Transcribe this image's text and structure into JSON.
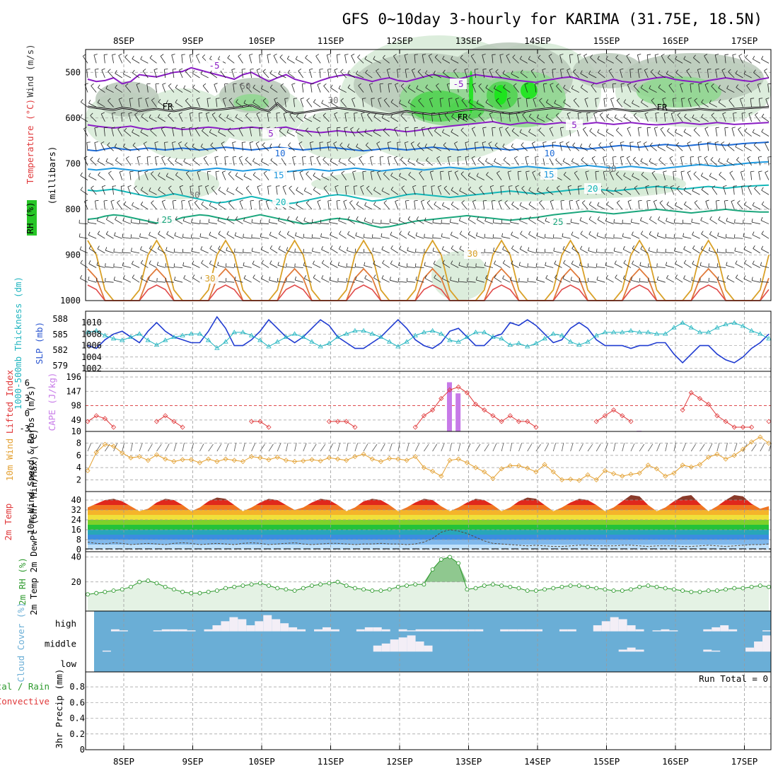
{
  "title": "GFS 0~10day 3-hourly for KARIMA (31.75E, 18.5N)",
  "run_total": "Run Total = 0",
  "colors": {
    "frame": "#000000",
    "grid": "#9a9a9a",
    "cloud": "#6aaed6",
    "cloudClear": "#f3eef6",
    "rh": "#2e9a2e",
    "slp": "#1f3bd1",
    "thick": "#21b5c0",
    "li": "#e0383a",
    "cape": "#c77ae8",
    "wind10": "#e3a030",
    "temp5": "#8a1cc4",
    "temp10": "#1d6bd6",
    "temp15": "#1f9ae0",
    "temp20": "#13b7b8",
    "temp25": "#1aa67c",
    "temp30": "#d9a128"
  },
  "chart_data": [
    {
      "panel": "upper-air",
      "type": "line",
      "x_dates": [
        "8SEP",
        "9SEP",
        "10SEP",
        "11SEP",
        "12SEP",
        "13SEP",
        "14SEP",
        "15SEP",
        "16SEP",
        "17SEP"
      ],
      "ylabel_parts": [
        "Wind (m/s)",
        "Temperature (°C)",
        "RH (%)"
      ],
      "ylabel": "(millibars)",
      "y_ticks": [
        500,
        600,
        700,
        800,
        900,
        1000
      ],
      "ylim": [
        1000,
        450
      ],
      "isotherm_labels": [
        {
          "text": "-5",
          "series": "-5 upper"
        },
        {
          "text": "-5",
          "series": "-5 upper"
        },
        {
          "text": "FR",
          "series": "0"
        },
        {
          "text": "FR",
          "series": "0"
        },
        {
          "text": "FR",
          "series": "0"
        },
        {
          "text": "5",
          "series": "5"
        },
        {
          "text": "5",
          "series": "5"
        },
        {
          "text": "10",
          "series": "10"
        },
        {
          "text": "10",
          "series": "10"
        },
        {
          "text": "15",
          "series": "15"
        },
        {
          "text": "15",
          "series": "15"
        },
        {
          "text": "20",
          "series": "20"
        },
        {
          "text": "20",
          "series": "20"
        },
        {
          "text": "25",
          "series": "25"
        },
        {
          "text": "25",
          "series": "25"
        },
        {
          "text": "30",
          "series": "30"
        },
        {
          "text": "30",
          "series": "30"
        }
      ],
      "rh_labels": [
        "50",
        "30",
        "30",
        "30"
      ],
      "isotherms": [
        {
          "label": "-5",
          "color": "#8a1cc4",
          "values": [
            515,
            520,
            518,
            512,
            525,
            520,
            505,
            508,
            510,
            505,
            500,
            498,
            490,
            495,
            500,
            505,
            510,
            515,
            505,
            500,
            510,
            520,
            512,
            505,
            515,
            520,
            525,
            518,
            512,
            508,
            505,
            510,
            515,
            520,
            515,
            512,
            518,
            520,
            515,
            510,
            505,
            508,
            512,
            515,
            510,
            505,
            508,
            510,
            512,
            515,
            518,
            520,
            522,
            518,
            515,
            512,
            510,
            515,
            520,
            525,
            520,
            515,
            520,
            522,
            518,
            515,
            512,
            510,
            515,
            518,
            520,
            522,
            518,
            515,
            512,
            515,
            518,
            520,
            515,
            512
          ]
        },
        {
          "label": "0",
          "color": "#000000",
          "values": [
            575,
            578,
            580,
            582,
            578,
            580,
            585,
            582,
            580,
            583,
            585,
            582,
            578,
            580,
            583,
            582,
            580,
            578,
            575,
            572,
            580,
            585,
            568,
            585,
            590,
            588,
            585,
            582,
            580,
            578,
            580,
            582,
            585,
            588,
            590,
            592,
            588,
            585,
            588,
            590,
            592,
            590,
            588,
            585,
            582,
            580,
            582,
            585,
            588,
            590,
            588,
            585,
            582,
            580,
            578,
            580,
            582,
            585,
            585,
            585,
            583,
            580,
            582,
            584,
            585,
            583,
            580,
            582,
            584,
            583,
            582,
            580,
            582,
            583,
            582,
            580,
            579,
            578,
            577,
            576
          ]
        },
        {
          "label": "5",
          "color": "#8a1cc4",
          "values": [
            615,
            618,
            620,
            622,
            620,
            618,
            622,
            625,
            622,
            620,
            622,
            625,
            624,
            622,
            620,
            622,
            625,
            624,
            622,
            620,
            622,
            625,
            622,
            620,
            625,
            628,
            630,
            632,
            630,
            628,
            630,
            632,
            630,
            628,
            626,
            625,
            628,
            630,
            628,
            625,
            622,
            620,
            618,
            616,
            614,
            612,
            610,
            608,
            612,
            615,
            612,
            610,
            612,
            614,
            612,
            610,
            612,
            614,
            612,
            610,
            612,
            614,
            612,
            610,
            612,
            614,
            615,
            614,
            612,
            610,
            612,
            614,
            612,
            610,
            612,
            614,
            613,
            612,
            611,
            610
          ]
        },
        {
          "label": "10",
          "color": "#1d6bd6",
          "values": [
            670,
            672,
            668,
            665,
            668,
            670,
            668,
            666,
            668,
            670,
            668,
            666,
            668,
            670,
            668,
            666,
            664,
            666,
            668,
            670,
            668,
            666,
            664,
            666,
            668,
            670,
            668,
            666,
            664,
            666,
            668,
            670,
            672,
            670,
            668,
            666,
            668,
            670,
            668,
            666,
            664,
            666,
            668,
            670,
            668,
            666,
            664,
            666,
            668,
            670,
            668,
            666,
            664,
            662,
            660,
            662,
            664,
            666,
            668,
            666,
            664,
            662,
            660,
            662,
            664,
            662,
            660,
            658,
            660,
            662,
            660,
            658,
            656,
            658,
            660,
            658,
            656,
            655,
            654,
            653
          ]
        },
        {
          "label": "15",
          "color": "#1f9ae0",
          "values": [
            712,
            714,
            712,
            710,
            712,
            714,
            716,
            714,
            712,
            710,
            712,
            714,
            716,
            714,
            712,
            710,
            712,
            714,
            716,
            714,
            712,
            714,
            716,
            718,
            716,
            714,
            712,
            714,
            716,
            714,
            712,
            710,
            712,
            714,
            716,
            714,
            712,
            710,
            712,
            714,
            712,
            710,
            708,
            710,
            712,
            710,
            708,
            706,
            708,
            710,
            708,
            706,
            708,
            710,
            712,
            710,
            708,
            706,
            704,
            706,
            708,
            710,
            708,
            706,
            708,
            710,
            712,
            710,
            708,
            706,
            704,
            702,
            704,
            706,
            704,
            702,
            700,
            698,
            697,
            696
          ]
        },
        {
          "label": "20",
          "color": "#13b7b8",
          "values": [
            758,
            760,
            758,
            756,
            760,
            764,
            768,
            772,
            774,
            770,
            766,
            770,
            774,
            778,
            782,
            786,
            784,
            780,
            776,
            772,
            776,
            780,
            784,
            788,
            786,
            782,
            778,
            774,
            770,
            768,
            770,
            774,
            778,
            782,
            780,
            776,
            772,
            768,
            766,
            768,
            770,
            772,
            774,
            772,
            770,
            768,
            766,
            764,
            762,
            760,
            762,
            764,
            766,
            764,
            762,
            760,
            758,
            756,
            754,
            756,
            758,
            760,
            758,
            756,
            754,
            752,
            750,
            752,
            754,
            756,
            754,
            752,
            750,
            752,
            754,
            752,
            750,
            749,
            748,
            747
          ]
        },
        {
          "label": "25",
          "color": "#1aa67c",
          "values": [
            822,
            820,
            815,
            812,
            814,
            818,
            822,
            826,
            830,
            828,
            824,
            818,
            815,
            812,
            814,
            818,
            822,
            824,
            820,
            816,
            812,
            816,
            820,
            824,
            828,
            832,
            830,
            826,
            822,
            820,
            822,
            826,
            830,
            836,
            840,
            838,
            834,
            830,
            826,
            824,
            822,
            820,
            818,
            816,
            814,
            816,
            818,
            820,
            822,
            824,
            822,
            820,
            818,
            815,
            812,
            810,
            808,
            806,
            804,
            806,
            808,
            810,
            808,
            806,
            804,
            802,
            800,
            802,
            804,
            806,
            808,
            806,
            804,
            802,
            800,
            802,
            804,
            805,
            806,
            806
          ]
        }
      ]
    },
    {
      "panel": "slp-thickness",
      "type": "line",
      "ylabel_left": "1000-500mb Thickness (dm)",
      "ylabel_right": "SLP (mb)",
      "left_ticks": [
        579,
        582,
        585,
        588
      ],
      "right_ticks": [
        1002,
        1004,
        1006,
        1008,
        1010
      ],
      "slp": [
        1006,
        1005.5,
        1007,
        1008,
        1008.5,
        1007.5,
        1006.5,
        1008.5,
        1010,
        1008.5,
        1007.5,
        1007,
        1006.5,
        1006.5,
        1008.5,
        1011,
        1009,
        1006,
        1006,
        1007,
        1008.5,
        1010.5,
        1009,
        1007.5,
        1006.5,
        1007.5,
        1009,
        1010.5,
        1009.5,
        1007.5,
        1006.5,
        1005.5,
        1005.5,
        1006.5,
        1007.5,
        1009,
        1010.5,
        1009,
        1007,
        1006,
        1005.5,
        1006.5,
        1008.5,
        1009,
        1007.5,
        1006,
        1006,
        1007.5,
        1008,
        1010,
        1009.5,
        1010.5,
        1009.5,
        1008,
        1006.5,
        1007,
        1009,
        1010,
        1009,
        1007,
        1006,
        1006,
        1006,
        1005.5,
        1006,
        1006,
        1006.5,
        1006.5,
        1004.5,
        1003,
        1004.5,
        1006,
        1006,
        1004.5,
        1003.5,
        1003,
        1004,
        1005.5,
        1006.5,
        1008
      ]
    },
    {
      "panel": "lifted-cape",
      "type": "bar",
      "ylabel_left": "Lifted Index",
      "ylabel_right": "CAPE (J/kg)",
      "left_ticks": [
        -3,
        0,
        3,
        6
      ],
      "right_ticks": [
        10,
        49,
        98,
        147,
        196
      ],
      "cape_bars": [
        {
          "time_index": 42,
          "value": 178
        },
        {
          "time_index": 43,
          "value": 140
        },
        {
          "time_index": 64,
          "value": 12
        },
        {
          "time_index": 71,
          "value": 10
        },
        {
          "time_index": 72,
          "value": 10
        }
      ]
    },
    {
      "panel": "wind10m",
      "type": "line",
      "ylabel": "10m Wind Speed & Barbs (m/s)",
      "y_ticks": [
        2,
        4,
        6,
        8
      ],
      "values": [
        3.5,
        6.5,
        7.8,
        7.5,
        6.4,
        5.6,
        5.8,
        5.2,
        6.1,
        5.4,
        5.0,
        5.3,
        5.3,
        4.8,
        5.4,
        5.0,
        5.4,
        5.2,
        5.0,
        5.8,
        5.6,
        5.3,
        5.7,
        5.2,
        5.0,
        5.1,
        5.3,
        5.1,
        5.6,
        5.4,
        5.2,
        5.8,
        6.2,
        5.4,
        5.0,
        5.5,
        5.4,
        5.2,
        5.8,
        4.0,
        3.4,
        2.6,
        5.2,
        5.4,
        4.8,
        4.0,
        3.3,
        2.2,
        3.8,
        4.3,
        4.3,
        3.9,
        3.3,
        4.5,
        3.3,
        2.0,
        2.1,
        1.9,
        2.8,
        2.0,
        3.5,
        3.0,
        2.6,
        2.9,
        3.1,
        4.4,
        3.8,
        2.6,
        3.1,
        4.4,
        4.1,
        4.5,
        5.7,
        6.2,
        5.4,
        6.0,
        7.0,
        8.2,
        9.0,
        8.0
      ]
    },
    {
      "panel": "temp2m",
      "type": "area",
      "ylabel": "2m Temp 2m DewPt (6hr Min/Max) (°C)",
      "y_ticks": [
        0,
        8,
        16,
        24,
        32,
        40
      ],
      "temp": [
        34,
        37,
        40,
        41,
        39,
        35,
        31,
        33,
        38,
        41,
        40,
        36,
        31,
        34,
        39,
        42,
        41,
        36,
        31,
        34,
        38,
        41,
        40,
        36,
        32,
        34,
        38,
        41,
        40,
        36,
        31,
        34,
        39,
        41,
        40,
        36,
        31,
        34,
        38,
        41,
        40,
        35,
        31,
        34,
        38,
        41,
        40,
        36,
        31,
        34,
        39,
        42,
        41,
        36,
        31,
        34,
        38,
        41,
        40,
        36,
        31,
        34,
        39,
        44,
        43,
        36,
        31,
        34,
        39,
        43,
        44,
        37,
        31,
        35,
        40,
        44,
        43,
        37,
        33,
        35
      ],
      "dewpoint": [
        6,
        5,
        4.5,
        5.5,
        5,
        4,
        4.5,
        5,
        4.5,
        4,
        5,
        5.5,
        5,
        4,
        4.5,
        5,
        4.5,
        4,
        5,
        5.5,
        5,
        4,
        4.5,
        5,
        5.5,
        4.5,
        4,
        4.5,
        5,
        5,
        4.5,
        4,
        4.5,
        4.5,
        5,
        4.5,
        4.5,
        4,
        4.5,
        6,
        9,
        14,
        16,
        15,
        13,
        10,
        7,
        5,
        4.5,
        4,
        3.5,
        3,
        3.5,
        3,
        2.5,
        2.5,
        3,
        3.5,
        3.5,
        3,
        3,
        3,
        3.5,
        3.5,
        3,
        2.5,
        3,
        3,
        3,
        2.5,
        2.5,
        3,
        3.5,
        3,
        2.5,
        3,
        3.5,
        4,
        4,
        4.5
      ]
    },
    {
      "panel": "rh2m",
      "type": "line",
      "ylabel": "2m RH (%)",
      "y_ticks": [
        20,
        40
      ],
      "values": [
        10,
        11,
        12,
        13,
        14,
        16,
        20,
        21,
        19,
        16,
        14,
        12,
        11,
        11,
        12,
        13,
        15,
        16,
        17,
        18,
        19,
        17,
        15,
        14,
        13,
        15,
        17,
        18,
        19,
        20,
        17,
        15,
        14,
        13,
        13,
        14,
        16,
        17,
        18,
        17,
        15,
        14,
        13,
        13,
        14,
        15,
        17,
        18,
        17,
        16,
        15,
        13,
        13,
        14,
        15,
        16,
        17,
        17,
        16,
        15,
        14,
        13,
        13,
        14,
        16,
        17,
        16,
        15,
        14,
        13,
        12,
        12,
        13,
        13,
        14,
        15,
        15,
        16,
        17,
        16
      ]
    },
    {
      "panel": "cloud-cover",
      "type": "heatmap",
      "ylabel": "Cloud Cover (%)",
      "rows": [
        "high",
        "middle",
        "low"
      ]
    },
    {
      "panel": "precip",
      "type": "bar",
      "ylabel": "3hr Precip (mm)",
      "legend_left": [
        "Total / Rain",
        "Convective"
      ],
      "y_ticks": [
        0,
        0.2,
        0.4,
        0.6,
        0.8
      ],
      "ylim": [
        0,
        0.9
      ],
      "values": []
    }
  ]
}
